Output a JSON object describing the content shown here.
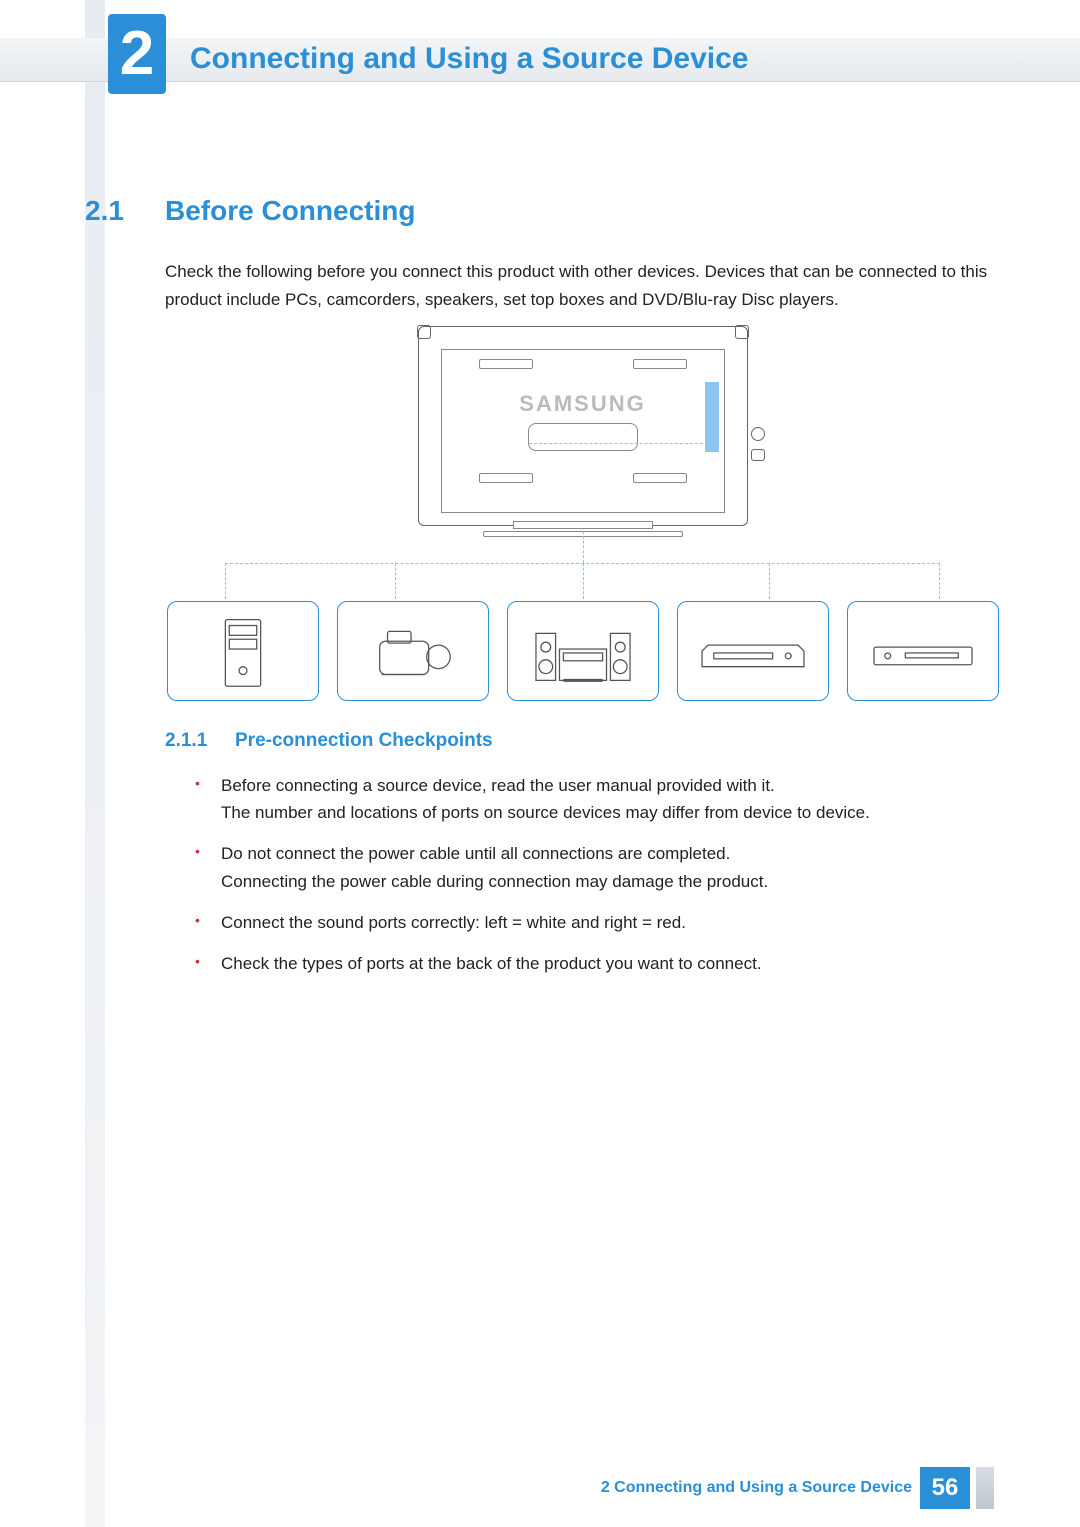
{
  "chapter": {
    "number": "2",
    "title": "Connecting and Using a Source Device"
  },
  "section": {
    "number": "2.1",
    "title": "Before Connecting"
  },
  "intro": "Check the following before you connect this product with other devices. Devices that can be connected to this product include PCs, camcorders, speakers, set top boxes and DVD/Blu-ray Disc players.",
  "subsection": {
    "number": "2.1.1",
    "title": "Pre-connection Checkpoints"
  },
  "bullets": [
    "Before connecting a source device, read the user manual provided with it.\nThe number and locations of ports on source devices may differ from device to device.",
    "Do not connect the power cable until all connections are completed.\nConnecting the power cable during connection may damage the product.",
    "Connect the sound ports correctly: left = white and right = red.",
    "Check the types of ports at the back of the product you want to connect."
  ],
  "figure": {
    "brand": "SAMSUNG",
    "devices": [
      "pc-tower",
      "camcorder",
      "stereo-system",
      "set-top-box",
      "dvd-player"
    ]
  },
  "footer": {
    "label": "2 Connecting and Using a Source Device",
    "page": "56"
  },
  "colors": {
    "accent": "#2a8fd6",
    "bullet": "#c33",
    "text": "#222",
    "figure_accent": "#8cc6ef",
    "line": "#666"
  }
}
